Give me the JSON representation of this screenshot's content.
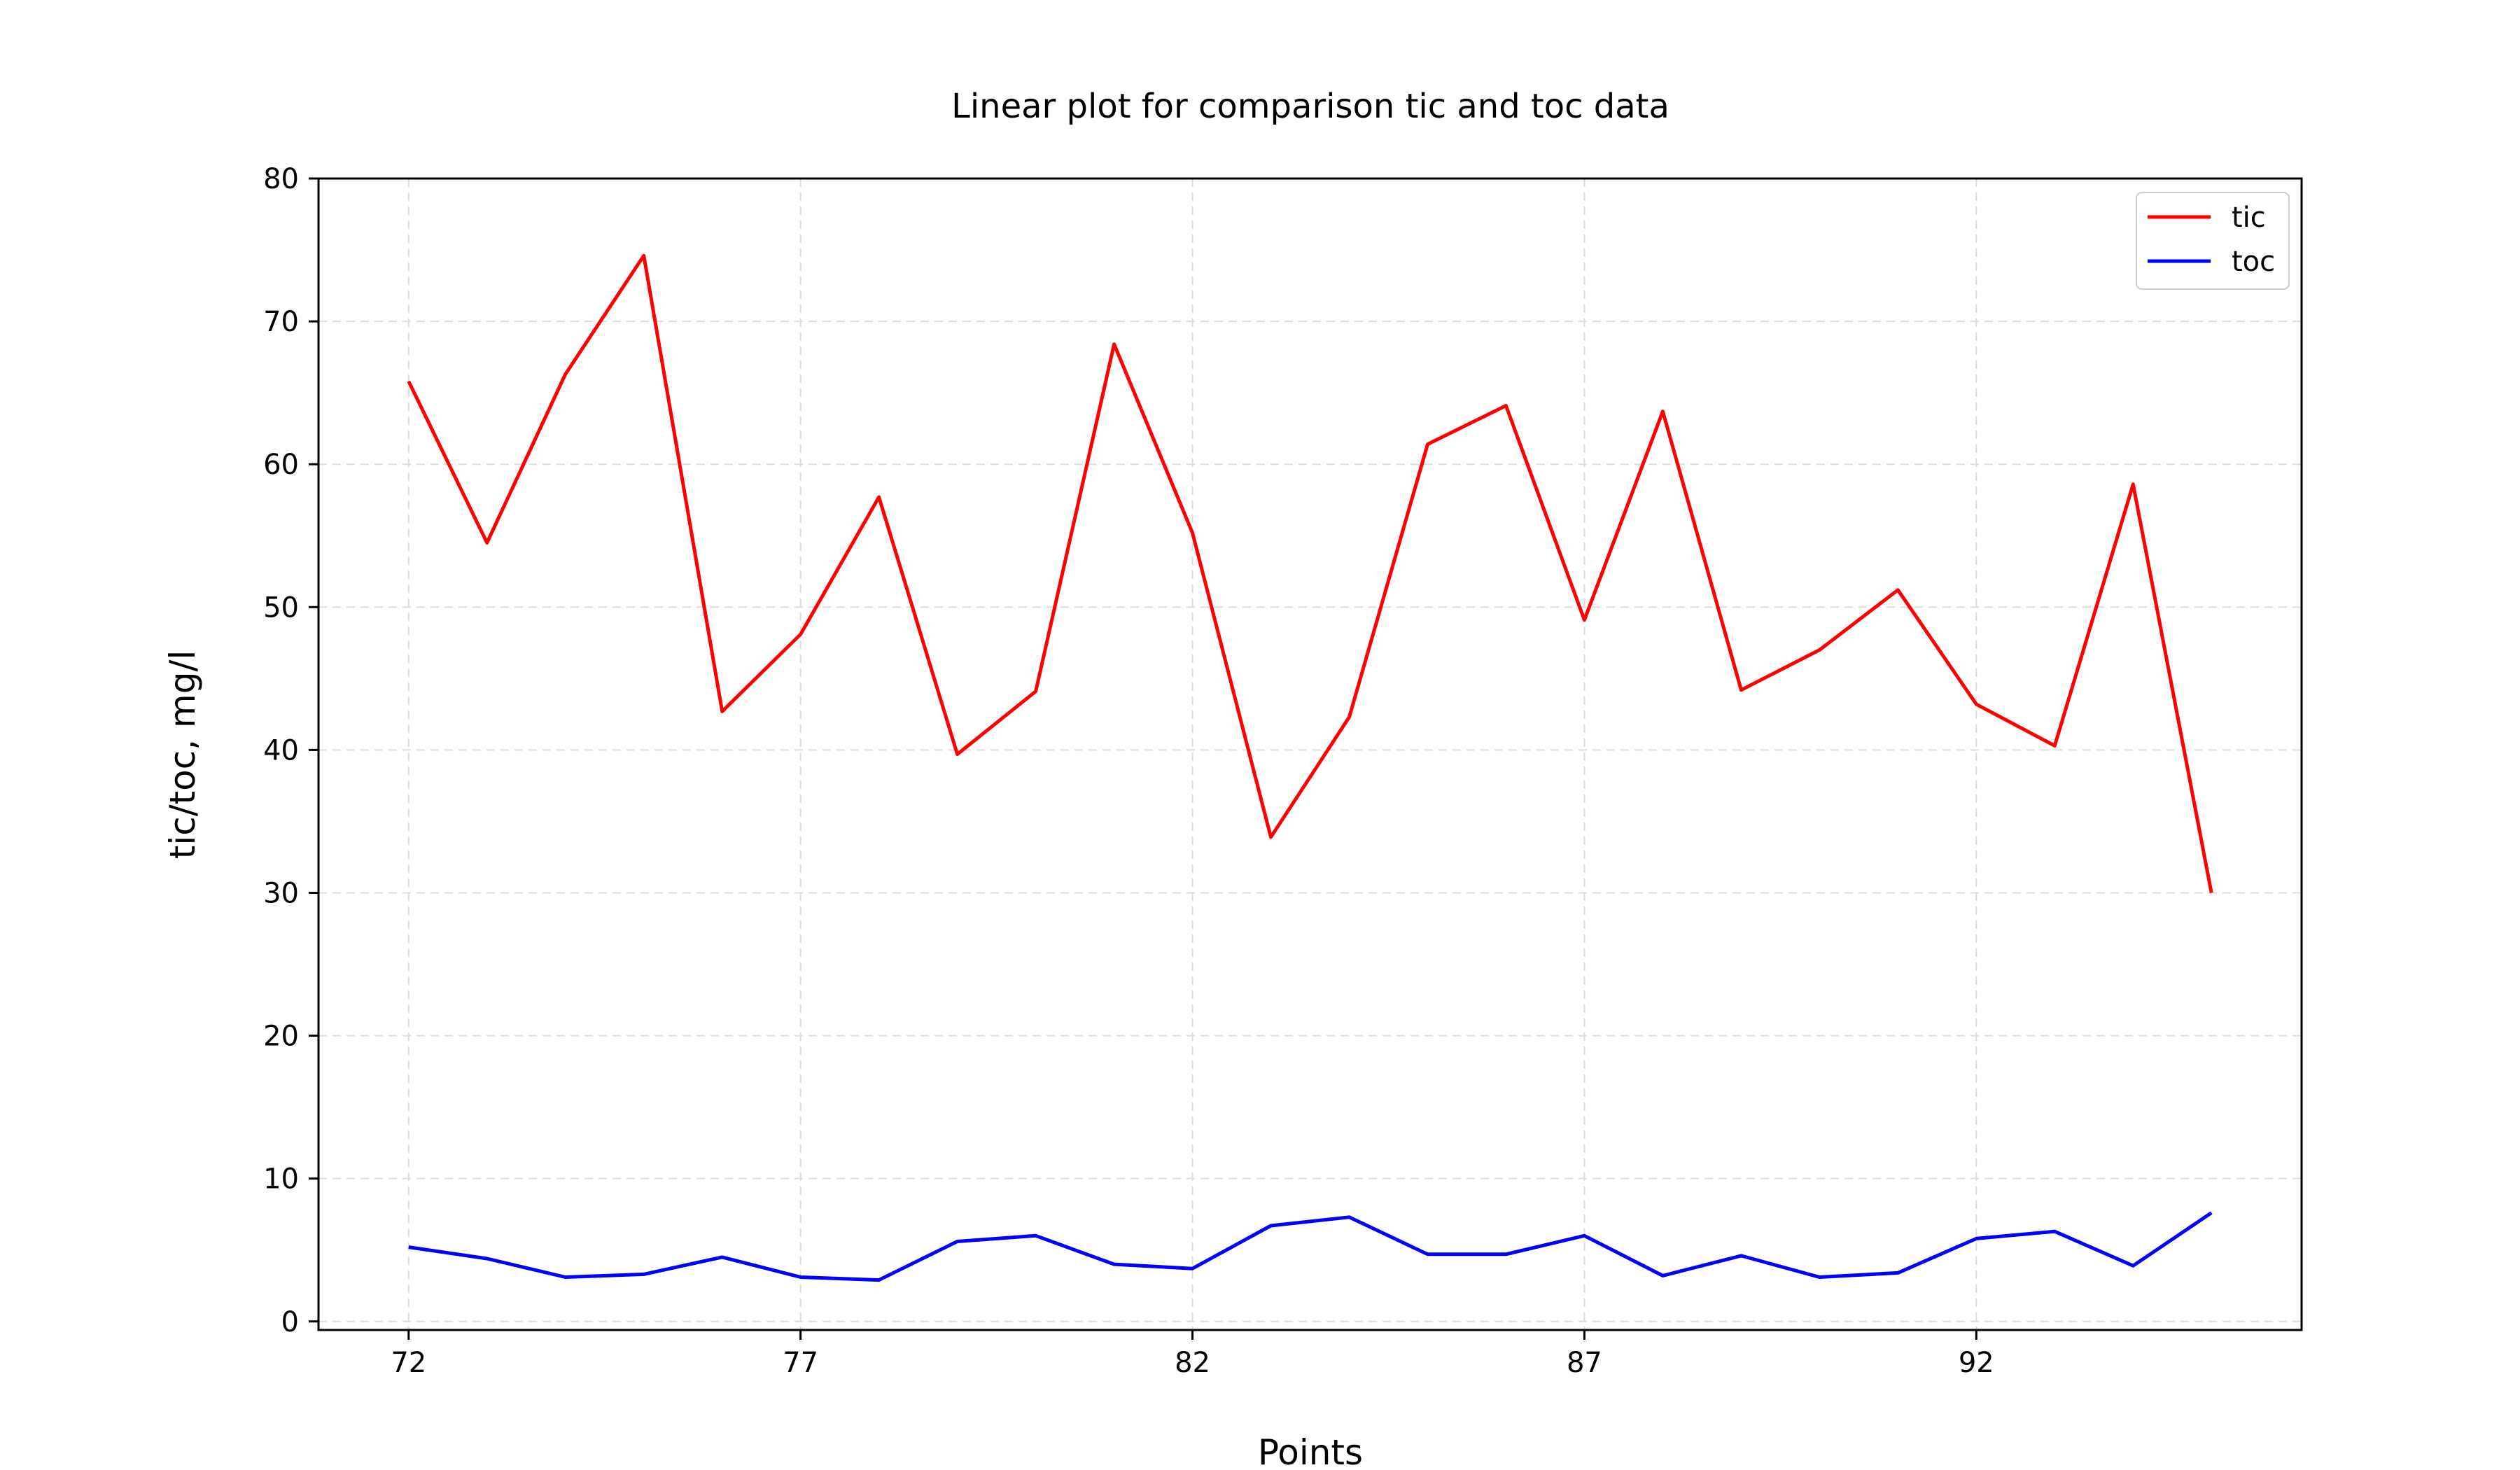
{
  "chart_data": {
    "type": "line",
    "title": "Linear plot for comparison tic and toc data",
    "xlabel": "Points",
    "ylabel": "tic/toc, mg/l",
    "xlim": [
      70.85,
      96.15
    ],
    "ylim": [
      -0.6,
      80
    ],
    "xticks": [
      72,
      77,
      82,
      87,
      92
    ],
    "yticks": [
      0,
      10,
      20,
      30,
      40,
      50,
      60,
      70,
      80
    ],
    "grid": true,
    "legend_position": "top-right",
    "x": [
      72,
      73,
      74,
      75,
      76,
      77,
      78,
      79,
      80,
      81,
      82,
      83,
      84,
      85,
      86,
      87,
      88,
      89,
      90,
      91,
      92,
      93,
      94,
      95
    ],
    "series": [
      {
        "name": "tic",
        "color": "#ff0000",
        "values": [
          65.8,
          54.5,
          66.3,
          74.6,
          42.7,
          48.1,
          57.7,
          39.7,
          44.1,
          68.4,
          55.2,
          33.9,
          42.3,
          61.4,
          64.1,
          49.1,
          63.7,
          44.2,
          47.0,
          51.2,
          43.2,
          40.3,
          58.6,
          30.0
        ]
      },
      {
        "name": "toc",
        "color": "#0000ff",
        "values": [
          5.2,
          4.4,
          3.1,
          3.3,
          4.5,
          3.1,
          2.9,
          5.6,
          6.0,
          4.0,
          3.7,
          6.7,
          7.3,
          4.7,
          4.7,
          6.0,
          3.2,
          4.6,
          3.1,
          3.4,
          5.8,
          6.3,
          3.9,
          7.6
        ]
      }
    ]
  }
}
